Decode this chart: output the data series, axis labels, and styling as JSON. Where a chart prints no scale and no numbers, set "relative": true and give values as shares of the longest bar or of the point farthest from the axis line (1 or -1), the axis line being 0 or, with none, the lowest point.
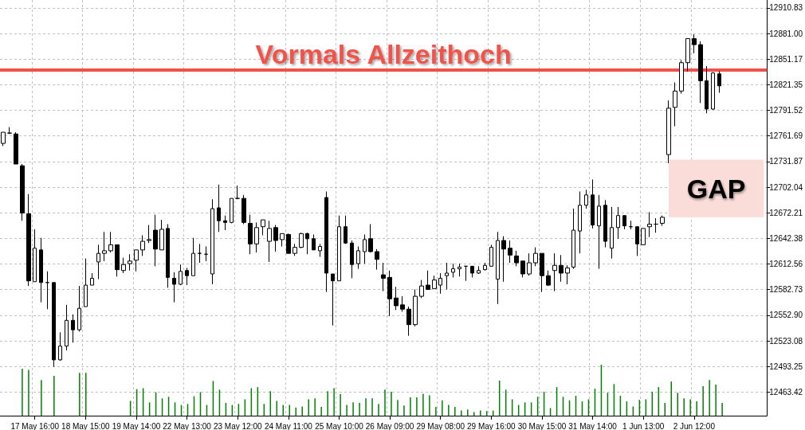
{
  "chart_data": [
    {
      "type": "candlestick",
      "categories": [
        null,
        null,
        null,
        null,
        null,
        "17 May 16:00",
        null,
        null,
        null,
        null,
        null,
        null,
        null,
        "18 May 15:00",
        null,
        null,
        null,
        null,
        null,
        null,
        null,
        "19 May 14:00",
        null,
        null,
        null,
        null,
        null,
        null,
        null,
        "22 May 13:00",
        null,
        null,
        null,
        null,
        null,
        null,
        null,
        "23 May 12:00",
        null,
        null,
        null,
        null,
        null,
        null,
        null,
        "24 May 11:00",
        null,
        null,
        null,
        null,
        null,
        null,
        null,
        "25 May 10:00",
        null,
        null,
        null,
        null,
        null,
        null,
        null,
        "26 May 09:00",
        null,
        null,
        null,
        null,
        null,
        null,
        null,
        "29 May 08:00",
        null,
        null,
        null,
        null,
        null,
        null,
        null,
        "29 May 16:00",
        null,
        null,
        null,
        null,
        null,
        null,
        null,
        "30 May 15:00",
        null,
        null,
        null,
        null,
        null,
        null,
        null,
        "31 May 14:00",
        null,
        null,
        null,
        null,
        null,
        null,
        null,
        "1 Jun 13:00",
        null,
        null,
        null,
        null,
        null,
        null,
        null,
        "2 Jun 12:00",
        null,
        null,
        null,
        null,
        null,
        null,
        null,
        null,
        null,
        null,
        null
      ],
      "ohlc": [
        [
          12753,
          12766,
          12750,
          12766
        ],
        [
          12765,
          12772,
          12764,
          12765
        ],
        [
          12764,
          12766,
          12729,
          12729
        ],
        [
          12727,
          12729,
          12663,
          12672
        ],
        [
          12671,
          12694,
          12587,
          12593
        ],
        [
          12592,
          12653,
          12592,
          12631
        ],
        [
          12629,
          12643,
          12568,
          12591
        ],
        [
          12591,
          12604,
          12560,
          12591
        ],
        [
          12591,
          12591,
          12493,
          12501
        ],
        [
          12501,
          12533,
          12500,
          12517
        ],
        [
          12517,
          12565,
          12512,
          12547
        ],
        [
          12547,
          12554,
          12521,
          12536
        ],
        [
          12536,
          12587,
          12534,
          12561
        ],
        [
          12563,
          12619,
          12563,
          12588
        ],
        [
          12588,
          12602,
          12588,
          12596
        ],
        [
          12615,
          12635,
          12595,
          12625
        ],
        [
          12625,
          12650,
          12616,
          12628
        ],
        [
          12628,
          12650,
          12626,
          12635
        ],
        [
          12635,
          12635,
          12598,
          12606
        ],
        [
          12605,
          12620,
          12602,
          12612
        ],
        [
          12613,
          12624,
          12605,
          12616
        ],
        [
          12617,
          12629,
          12604,
          12629
        ],
        [
          12629,
          12646,
          12622,
          12639
        ],
        [
          12640,
          12658,
          12637,
          12641
        ],
        [
          12652,
          12670,
          12610,
          12630
        ],
        [
          12629,
          12664,
          12629,
          12653
        ],
        [
          12654,
          12659,
          12585,
          12597
        ],
        [
          12596,
          12603,
          12568,
          12589
        ],
        [
          12589,
          12612,
          12588,
          12604
        ],
        [
          12605,
          12608,
          12588,
          12599
        ],
        [
          12599,
          12643,
          12599,
          12625
        ],
        [
          12625,
          12636,
          12614,
          12625
        ],
        [
          12624,
          12633,
          12616,
          12624
        ],
        [
          12601,
          12688,
          12589,
          12677
        ],
        [
          12678,
          12705,
          12650,
          12663
        ],
        [
          12663,
          12669,
          12652,
          12661
        ],
        [
          12661,
          12689,
          12660,
          12689
        ],
        [
          12689,
          12704,
          12688,
          12689
        ],
        [
          12689,
          12693,
          12659,
          12661
        ],
        [
          12660,
          12670,
          12624,
          12636
        ],
        [
          12636,
          12661,
          12626,
          12655
        ],
        [
          12656,
          12664,
          12646,
          12664
        ],
        [
          12639,
          12663,
          12615,
          12654
        ],
        [
          12655,
          12658,
          12627,
          12640
        ],
        [
          12641,
          12648,
          12633,
          12648
        ],
        [
          12647,
          12648,
          12625,
          12625
        ],
        [
          12625,
          12636,
          12622,
          12632
        ],
        [
          12632,
          12649,
          12631,
          12648
        ],
        [
          12648,
          12649,
          12624,
          12642
        ],
        [
          12642,
          12647,
          12629,
          12629
        ],
        [
          12628,
          12636,
          12621,
          12633
        ],
        [
          12690,
          12697,
          12580,
          12602
        ],
        [
          12601,
          12601,
          12541,
          12593
        ],
        [
          12593,
          12669,
          12593,
          12656
        ],
        [
          12656,
          12669,
          12636,
          12637
        ],
        [
          12637,
          12640,
          12596,
          12612
        ],
        [
          12613,
          12633,
          12607,
          12628
        ],
        [
          12627,
          12647,
          12613,
          12641
        ],
        [
          12642,
          12659,
          12626,
          12627
        ],
        [
          12627,
          12630,
          12606,
          12618
        ],
        [
          12600,
          12614,
          12581,
          12596
        ],
        [
          12597,
          12605,
          12552,
          12572
        ],
        [
          12573,
          12586,
          12559,
          12564
        ],
        [
          12565,
          12575,
          12557,
          12560
        ],
        [
          12560,
          12563,
          12529,
          12542
        ],
        [
          12542,
          12583,
          12540,
          12575
        ],
        [
          12575,
          12594,
          12573,
          12587
        ],
        [
          12588,
          12605,
          12583,
          12583
        ],
        [
          12584,
          12599,
          12584,
          12594
        ],
        [
          12588,
          12602,
          12578,
          12596
        ],
        [
          12599,
          12614,
          12583,
          12602
        ],
        [
          12603,
          12613,
          12597,
          12607
        ],
        [
          12607,
          12613,
          12598,
          12609
        ],
        [
          12610,
          12610,
          12593,
          12610
        ],
        [
          12610,
          12610,
          12597,
          12602
        ],
        [
          12602,
          12610,
          12601,
          12605
        ],
        [
          12606,
          12614,
          12605,
          12611
        ],
        [
          12610,
          12635,
          12610,
          12632
        ],
        [
          12595,
          12650,
          12566,
          12640
        ],
        [
          12640,
          12645,
          12592,
          12630
        ],
        [
          12631,
          12640,
          12614,
          12623
        ],
        [
          12622,
          12628,
          12610,
          12614
        ],
        [
          12616,
          12616,
          12597,
          12601
        ],
        [
          12601,
          12625,
          12599,
          12614
        ],
        [
          12614,
          12632,
          12610,
          12625
        ],
        [
          12625,
          12625,
          12580,
          12599
        ],
        [
          12599,
          12605,
          12587,
          12588
        ],
        [
          12605,
          12625,
          12581,
          12611
        ],
        [
          12611,
          12623,
          12592,
          12602
        ],
        [
          12602,
          12611,
          12589,
          12608
        ],
        [
          12609,
          12677,
          12607,
          12652
        ],
        [
          12651,
          12697,
          12625,
          12681
        ],
        [
          12681,
          12699,
          12677,
          12693
        ],
        [
          12693,
          12711,
          12654,
          12658
        ],
        [
          12657,
          12693,
          12607,
          12680
        ],
        [
          12681,
          12687,
          12632,
          12639
        ],
        [
          12631,
          12679,
          12619,
          12655
        ],
        [
          12655,
          12679,
          12642,
          12669
        ],
        [
          12669,
          12669,
          12653,
          12657
        ],
        [
          12656,
          12663,
          12653,
          12656
        ],
        [
          12656,
          12656,
          12622,
          12636
        ],
        [
          12635,
          12654,
          12635,
          12654
        ],
        [
          12656,
          12673,
          12644,
          12659
        ],
        [
          12659,
          12666,
          12649,
          12659
        ],
        [
          12660,
          12669,
          12657,
          12667
        ],
        [
          12740,
          12803,
          12730,
          12794
        ],
        [
          12795,
          12824,
          12773,
          12814
        ],
        [
          12814,
          12850,
          12811,
          12847
        ],
        [
          12847,
          12875,
          12837,
          12875
        ],
        [
          12875,
          12880,
          12858,
          12868
        ],
        [
          12868,
          12872,
          12800,
          12826
        ],
        [
          12826,
          12843,
          12788,
          12793
        ],
        [
          12793,
          12836,
          12792,
          12835
        ],
        [
          12834,
          12837,
          12812,
          12820
        ],
        null,
        null,
        null,
        null,
        null,
        null,
        null
      ],
      "ylim": [
        12436,
        12920
      ],
      "yticks": [
        12910.83,
        {
          "value": 12881,
          "label": "12881.00"
        },
        12851.17,
        12821.35,
        12791.52,
        12761.69,
        12731.87,
        12702.04,
        12672.21,
        12642.38,
        12612.56,
        12582.73,
        {
          "value": 12552.9,
          "label": "12552.90"
        },
        12523.08,
        12493.25,
        12463.42
      ],
      "grid": true,
      "ref_lines": [
        {
          "axis": "y",
          "value": 12839,
          "label": "Vormals Allzeithoch",
          "color": "#f0524a"
        }
      ],
      "bands": [
        {
          "axis": "y",
          "from": 12667,
          "to": 12734,
          "label": "GAP",
          "color": "#fadcd9"
        }
      ]
    },
    {
      "type": "bar",
      "relative": true,
      "tick_labels": false,
      "color": "#008000",
      "categories": [
        null,
        null,
        null,
        null,
        null,
        null,
        null,
        null,
        null,
        null,
        null,
        null,
        null,
        null,
        null,
        null,
        null,
        null,
        null,
        null,
        null,
        null,
        null,
        null,
        null,
        null,
        null,
        null,
        null,
        null,
        null,
        null,
        null,
        null,
        null,
        null,
        null,
        null,
        null,
        null,
        null,
        null,
        null,
        null,
        null,
        null,
        null,
        null,
        null,
        null,
        null,
        null,
        null,
        null,
        null,
        null,
        null,
        null,
        null,
        null,
        null,
        null,
        null,
        null,
        null,
        null,
        null,
        null,
        null,
        null,
        null,
        null,
        null,
        null,
        null,
        null,
        null,
        null,
        null,
        null,
        null,
        null,
        null,
        null,
        null,
        null,
        null,
        null,
        null,
        null,
        null,
        null,
        null,
        null,
        null,
        null,
        null,
        null,
        null,
        null,
        null,
        null,
        null,
        null,
        null,
        null,
        null,
        null,
        null,
        null,
        null,
        null,
        null,
        null,
        null,
        null,
        null,
        null,
        null,
        null,
        null
      ],
      "values": [
        null,
        null,
        null,
        0.92,
        0.9,
        null,
        0.7,
        null,
        0.78,
        null,
        null,
        null,
        0.84,
        0.84,
        null,
        null,
        null,
        null,
        null,
        null,
        0.29,
        0.52,
        0.54,
        0.26,
        0.46,
        0.34,
        0.37,
        0.26,
        0.21,
        0.23,
        0.38,
        0.46,
        0.21,
        0.68,
        0.51,
        0.25,
        0.21,
        0.23,
        0.32,
        0.54,
        0.56,
        0.23,
        0.48,
        0.29,
        0.21,
        0.21,
        0.16,
        0.18,
        0.32,
        0.34,
        0.17,
        0.48,
        0.54,
        0.42,
        0.21,
        0.26,
        0.25,
        0.34,
        0.34,
        0.23,
        0.51,
        0.47,
        0.31,
        0.2,
        0.36,
        0.36,
        0.43,
        0.4,
        0.17,
        0.3,
        0.21,
        0.17,
        0.1,
        0.12,
        0.07,
        0.1,
        0.09,
        0.1,
        0.69,
        0.51,
        0.32,
        0.21,
        0.26,
        0.26,
        0.37,
        0.47,
        0.15,
        0.56,
        0.37,
        0.3,
        0.39,
        0.28,
        0.32,
        0.53,
        1,
        0.45,
        0.62,
        0.39,
        0.28,
        0.18,
        0.31,
        0.32,
        0.47,
        0.56,
        0.25,
        0.67,
        0.45,
        0.34,
        0.32,
        0.28,
        0.58,
        0.7,
        0.61,
        0.25,
        null,
        null,
        null,
        null,
        null,
        null,
        null
      ]
    }
  ]
}
